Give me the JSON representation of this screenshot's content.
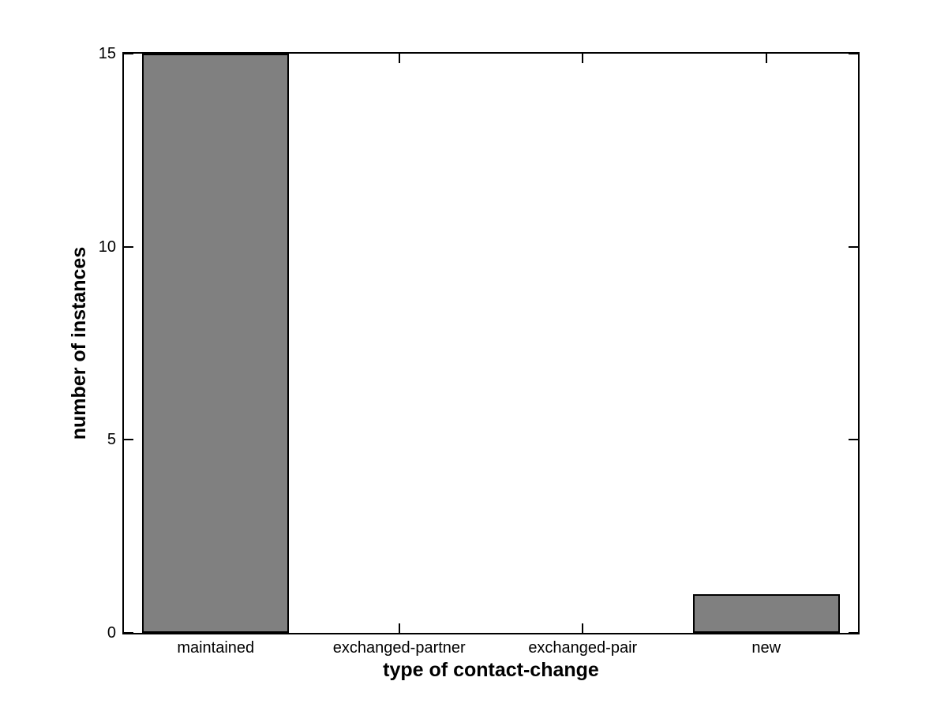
{
  "chart_data": {
    "type": "bar",
    "categories": [
      "maintained",
      "exchanged-partner",
      "exchanged-pair",
      "new"
    ],
    "values": [
      15,
      0,
      0,
      1
    ],
    "title": "",
    "xlabel": "type of contact-change",
    "ylabel": "number of instances",
    "ylim": [
      0,
      15
    ],
    "yticks": [
      0,
      5,
      10,
      15
    ],
    "ytick_labels": [
      "0",
      "5",
      "10",
      "15"
    ],
    "bar_width_fraction": 0.8,
    "bar_fill_color": "#808080",
    "bar_edge_color": "#000000",
    "axis_color": "#000000",
    "background_color": "#ffffff",
    "grid": false,
    "legend": null
  }
}
